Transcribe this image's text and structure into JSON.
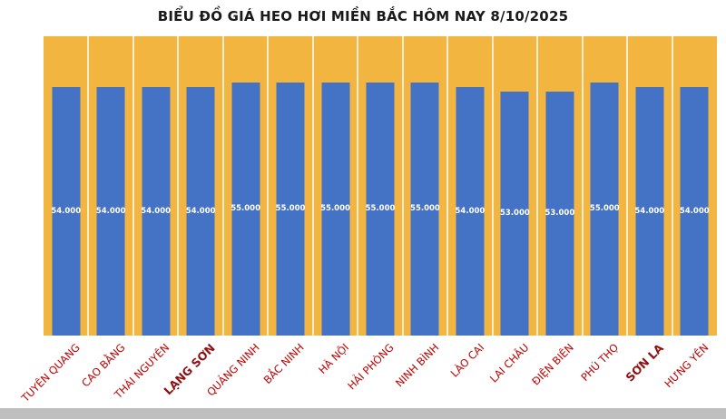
{
  "page": {
    "background": "#FFFFFF"
  },
  "chart_data": {
    "type": "bar",
    "title": "BIỂU ĐỒ GIÁ HEO HƠI MIỀN BẮC HÔM NAY 8/10/2025",
    "xlabel": "",
    "ylabel": "",
    "ylim": [
      0,
      65000
    ],
    "grid": "vertical-white-separators-between-categories",
    "legend": "none",
    "categories": [
      "TUYÊN QUANG",
      "CAO BẰNG",
      "THÁI NGUYÊN",
      "LẠNG SƠN",
      "QUẢNG NINH",
      "BẮC NINH",
      "HÀ NỘI",
      "HẢI PHÒNG",
      "NINH BÌNH",
      "LÀO CAI",
      "LAI CHÂU",
      "ĐIỆN BIÊN",
      "PHÚ THỌ",
      "SƠN LA",
      "HƯNG YÊN"
    ],
    "values": [
      54000,
      54000,
      54000,
      54000,
      55000,
      55000,
      55000,
      55000,
      55000,
      54000,
      53000,
      53000,
      55000,
      54000,
      54000
    ],
    "value_labels": [
      "54.000",
      "54.000",
      "54.000",
      "54.000",
      "55.000",
      "55.000",
      "55.000",
      "55.000",
      "55.000",
      "54.000",
      "53.000",
      "53.000",
      "55.000",
      "54.000",
      "54.000"
    ],
    "emphasized_categories": [
      "LẠNG SƠN",
      "SƠN LA"
    ],
    "colors": {
      "bar": "#4472C4",
      "plot_background": "#F2B540",
      "value_label_text": "#FFFFFF",
      "category_label_text": "#C00000",
      "emphasized_category_text": "#8F1010",
      "title_text": "#1A1A1A",
      "bottom_strip": "#BFBFBF"
    }
  }
}
